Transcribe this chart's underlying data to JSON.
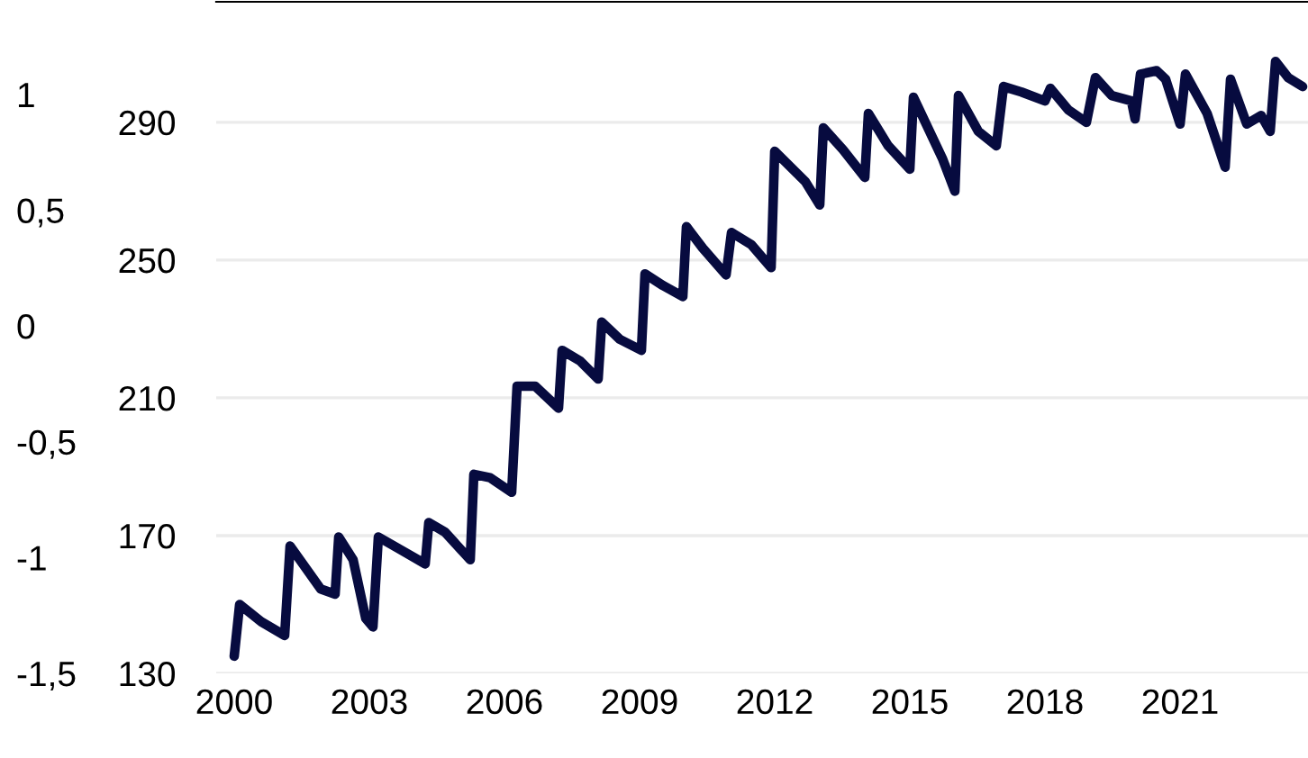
{
  "chart_data": {
    "type": "line",
    "x": [
      2000.0,
      2000.12,
      2000.6,
      2001.12,
      2001.24,
      2001.92,
      2002.24,
      2002.32,
      2002.64,
      2002.92,
      2003.08,
      2003.2,
      2003.68,
      2004.24,
      2004.32,
      2004.68,
      2005.24,
      2005.32,
      2005.68,
      2006.16,
      2006.28,
      2006.68,
      2007.2,
      2007.28,
      2007.68,
      2008.08,
      2008.16,
      2008.56,
      2009.04,
      2009.12,
      2009.52,
      2009.96,
      2010.04,
      2010.4,
      2010.92,
      2011.04,
      2011.48,
      2011.92,
      2012.0,
      2012.68,
      2013.0,
      2013.08,
      2013.52,
      2014.0,
      2014.08,
      2014.52,
      2015.0,
      2015.08,
      2015.72,
      2016.0,
      2016.08,
      2016.52,
      2016.92,
      2017.08,
      2017.48,
      2018.0,
      2018.12,
      2018.52,
      2018.92,
      2019.12,
      2019.48,
      2019.92,
      2020.0,
      2020.12,
      2020.48,
      2020.68,
      2021.0,
      2021.12,
      2021.6,
      2022.0,
      2022.12,
      2022.48,
      2022.8,
      2023.0,
      2023.12,
      2023.4,
      2023.72
    ],
    "series": [
      {
        "color": "#070b3f",
        "values": [
          135,
          150,
          145,
          141,
          167,
          154.5,
          153,
          169.6,
          163,
          146,
          143.5,
          169.6,
          166,
          161.8,
          173.8,
          171,
          163,
          187.8,
          186.8,
          182.6,
          213.4,
          213.4,
          207,
          223.8,
          220.7,
          215.5,
          232,
          227,
          223.8,
          246,
          242.6,
          239.4,
          259.7,
          253.5,
          245.7,
          258,
          254.5,
          247.8,
          281.6,
          272.8,
          266,
          288.4,
          282,
          274,
          292.6,
          283.2,
          276.4,
          297.3,
          279.6,
          270,
          297.8,
          287.4,
          283.2,
          300.4,
          298.8,
          296.2,
          299.9,
          293.6,
          290,
          303,
          297.8,
          296.2,
          291,
          304,
          305,
          302.5,
          289.5,
          304,
          292.6,
          277,
          302.5,
          289.5,
          292,
          287.4,
          307.7,
          303,
          300.4
        ]
      }
    ],
    "xlim": [
      1999.6,
      2023.84
    ],
    "xticks": [
      2000,
      2003,
      2006,
      2009,
      2012,
      2015,
      2018,
      2021
    ],
    "ylim": [
      130,
      325
    ],
    "yticks": [
      130,
      170,
      210,
      250,
      290
    ],
    "y2lim": [
      -1.5,
      1.4
    ],
    "y2ticks": [
      {
        "value": 1,
        "label": "1"
      },
      {
        "value": 0.5,
        "label": "0,5"
      },
      {
        "value": 0,
        "label": "0"
      },
      {
        "value": -0.5,
        "label": "-0,5"
      },
      {
        "value": -1,
        "label": "-1"
      },
      {
        "value": -1.5,
        "label": "-1,5"
      }
    ],
    "grid": "y"
  }
}
